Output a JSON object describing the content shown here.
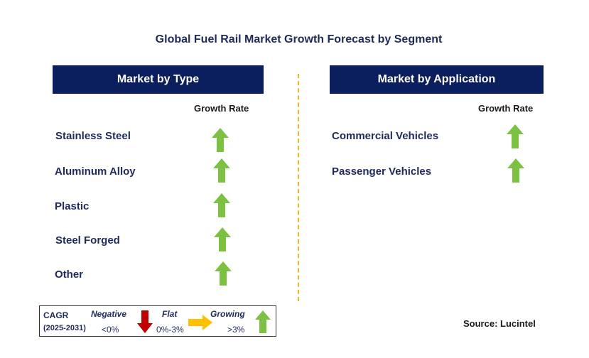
{
  "title": "Global Fuel Rail Market Growth Forecast by Segment",
  "left_panel": {
    "header": "Market by Type",
    "column_header": "Growth Rate",
    "rows": [
      {
        "label": "Stainless Steel",
        "growth": "Growing"
      },
      {
        "label": "Aluminum Alloy",
        "growth": "Growing"
      },
      {
        "label": "Plastic",
        "growth": "Growing"
      },
      {
        "label": "Steel Forged",
        "growth": "Growing"
      },
      {
        "label": "Other",
        "growth": "Growing"
      }
    ]
  },
  "right_panel": {
    "header": "Market by Application",
    "column_header": "Growth Rate",
    "rows": [
      {
        "label": "Commercial Vehicles",
        "growth": "Growing"
      },
      {
        "label": "Passenger Vehicles",
        "growth": "Growing"
      }
    ]
  },
  "legend": {
    "cagr_label": "CAGR",
    "period": "(2025-2031)",
    "negative_label": "Negative",
    "negative_range": "<0%",
    "flat_label": "Flat",
    "flat_range": "0%-3%",
    "growing_label": "Growing",
    "growing_range": ">3%"
  },
  "source": "Source: Lucintel",
  "colors": {
    "header_bg": "#0b1f5e",
    "growing_arrow": "#7dc143",
    "negative_arrow": "#c00000",
    "flat_arrow": "#ffc000",
    "divider": "#f2b51b"
  }
}
